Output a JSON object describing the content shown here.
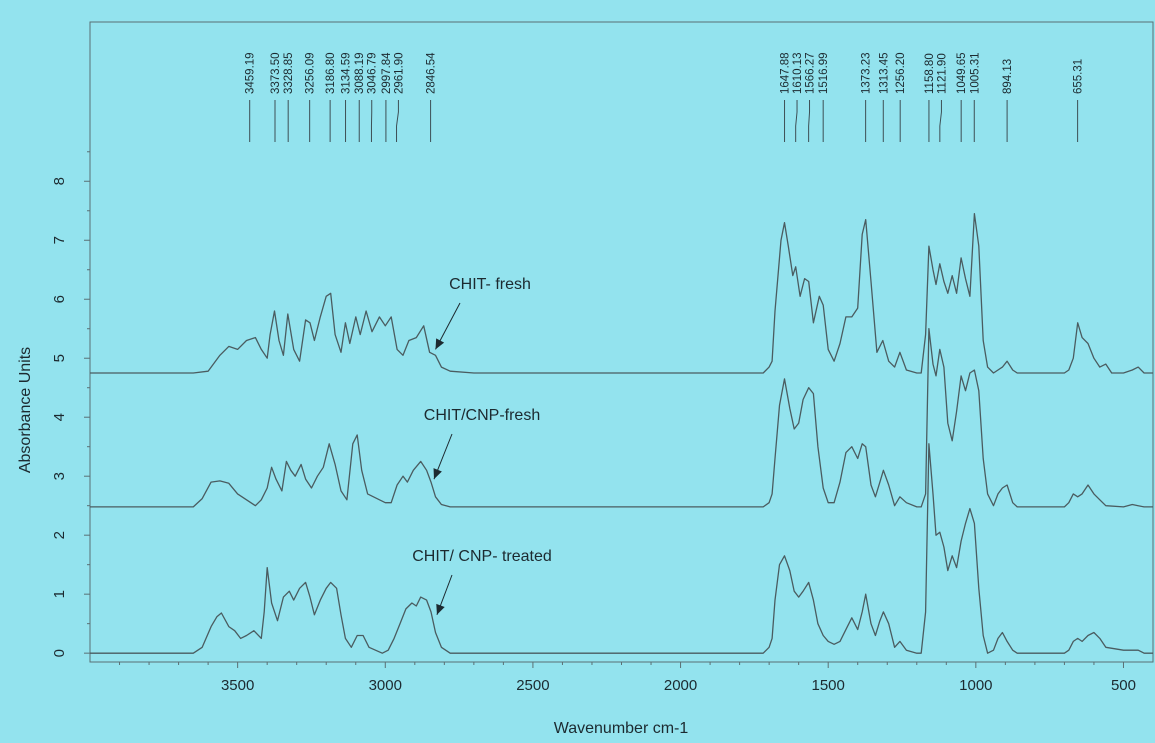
{
  "chart_data": {
    "type": "line",
    "xlabel": "Wavenumber cm-1",
    "ylabel": "Absorbance Units",
    "xlim": [
      4000,
      400
    ],
    "ylim": [
      -0.15,
      10.7
    ],
    "x_ticks": [
      3500,
      3000,
      2500,
      2000,
      1500,
      1000,
      500
    ],
    "y_ticks": [
      0,
      1,
      2,
      3,
      4,
      5,
      6,
      7,
      8
    ],
    "grid": false,
    "peak_labels": [
      "3459.19",
      "3373.50",
      "3328.85",
      "3256.09",
      "3186.80",
      "3134.59",
      "3088.19",
      "3046.79",
      "2997.84",
      "2961.90",
      "2846.54",
      "1647.88",
      "1610.13",
      "1566.27",
      "1516.99",
      "1373.23",
      "1313.45",
      "1256.20",
      "1158.80",
      "1121.90",
      "1049.65",
      "1005.31",
      "894.13",
      "655.31"
    ],
    "annotations": [
      {
        "text": "CHIT- fresh",
        "points_to": [
          2830,
          5.15
        ]
      },
      {
        "text": "CHIT/CNP-fresh",
        "points_to": [
          2835,
          2.95
        ]
      },
      {
        "text": "CHIT/ CNP- treated",
        "points_to": [
          2825,
          0.65
        ]
      }
    ],
    "series": [
      {
        "baseline": 4.75,
        "x": [
          4000,
          3650,
          3600,
          3560,
          3530,
          3500,
          3470,
          3440,
          3420,
          3400,
          3390,
          3375,
          3360,
          3345,
          3330,
          3310,
          3290,
          3270,
          3255,
          3240,
          3220,
          3200,
          3185,
          3170,
          3150,
          3135,
          3120,
          3100,
          3085,
          3065,
          3045,
          3020,
          3000,
          2980,
          2960,
          2940,
          2920,
          2895,
          2870,
          2850,
          2830,
          2810,
          2780,
          2700,
          1720,
          1700,
          1690,
          1680,
          1660,
          1648,
          1635,
          1620,
          1610,
          1595,
          1580,
          1566,
          1550,
          1530,
          1517,
          1500,
          1480,
          1460,
          1440,
          1420,
          1400,
          1385,
          1373,
          1355,
          1335,
          1315,
          1295,
          1275,
          1257,
          1235,
          1200,
          1185,
          1170,
          1159,
          1145,
          1135,
          1122,
          1108,
          1095,
          1080,
          1065,
          1050,
          1035,
          1020,
          1005,
          990,
          975,
          960,
          940,
          925,
          910,
          894,
          875,
          860,
          840,
          800,
          700,
          685,
          670,
          655,
          640,
          620,
          600,
          580,
          560,
          540,
          500,
          470,
          450,
          430,
          400
        ],
        "y": [
          4.75,
          4.75,
          4.78,
          5.05,
          5.2,
          5.15,
          5.3,
          5.35,
          5.15,
          5.0,
          5.4,
          5.8,
          5.3,
          5.05,
          5.75,
          5.15,
          4.95,
          5.65,
          5.6,
          5.3,
          5.7,
          6.05,
          6.1,
          5.4,
          5.1,
          5.6,
          5.25,
          5.7,
          5.4,
          5.8,
          5.45,
          5.7,
          5.55,
          5.7,
          5.15,
          5.05,
          5.3,
          5.35,
          5.55,
          5.1,
          5.05,
          4.85,
          4.78,
          4.75,
          4.75,
          4.85,
          4.95,
          5.8,
          7.0,
          7.3,
          6.9,
          6.4,
          6.55,
          6.05,
          6.35,
          6.3,
          5.6,
          6.05,
          5.9,
          5.15,
          4.95,
          5.25,
          5.7,
          5.7,
          5.85,
          7.1,
          7.35,
          6.3,
          5.1,
          5.3,
          4.95,
          4.85,
          5.1,
          4.8,
          4.75,
          4.75,
          5.4,
          6.9,
          6.5,
          6.25,
          6.6,
          6.3,
          6.1,
          6.4,
          6.1,
          6.7,
          6.35,
          6.05,
          7.45,
          6.9,
          5.3,
          4.85,
          4.75,
          4.8,
          4.85,
          4.95,
          4.8,
          4.75,
          4.75,
          4.75,
          4.75,
          4.8,
          5.0,
          5.6,
          5.35,
          5.25,
          5.0,
          4.85,
          4.9,
          4.75,
          4.75,
          4.8,
          4.85,
          4.75,
          4.75
        ]
      },
      {
        "baseline": 2.48,
        "x": [
          4000,
          3650,
          3620,
          3590,
          3560,
          3530,
          3500,
          3470,
          3440,
          3420,
          3400,
          3385,
          3370,
          3350,
          3335,
          3320,
          3305,
          3285,
          3270,
          3250,
          3230,
          3210,
          3190,
          3170,
          3150,
          3130,
          3110,
          3095,
          3080,
          3060,
          3000,
          2980,
          2960,
          2940,
          2925,
          2905,
          2880,
          2860,
          2845,
          2830,
          2810,
          2780,
          2700,
          1720,
          1700,
          1690,
          1680,
          1665,
          1648,
          1630,
          1615,
          1600,
          1585,
          1566,
          1550,
          1535,
          1517,
          1500,
          1480,
          1460,
          1440,
          1420,
          1400,
          1385,
          1373,
          1355,
          1340,
          1325,
          1313,
          1295,
          1275,
          1257,
          1235,
          1200,
          1185,
          1170,
          1159,
          1145,
          1135,
          1122,
          1108,
          1095,
          1080,
          1065,
          1050,
          1035,
          1020,
          1005,
          990,
          975,
          960,
          940,
          925,
          910,
          894,
          875,
          860,
          840,
          800,
          700,
          685,
          670,
          655,
          640,
          620,
          600,
          580,
          560,
          500,
          470,
          450,
          430,
          400
        ],
        "y": [
          2.48,
          2.48,
          2.62,
          2.9,
          2.92,
          2.88,
          2.7,
          2.6,
          2.5,
          2.6,
          2.8,
          3.15,
          2.95,
          2.75,
          3.25,
          3.1,
          3.0,
          3.2,
          2.95,
          2.8,
          3.0,
          3.15,
          3.55,
          3.2,
          2.75,
          2.6,
          3.55,
          3.7,
          3.1,
          2.7,
          2.55,
          2.55,
          2.85,
          3.0,
          2.9,
          3.1,
          3.25,
          3.1,
          2.9,
          2.65,
          2.52,
          2.48,
          2.48,
          2.48,
          2.55,
          2.7,
          3.3,
          4.2,
          4.65,
          4.15,
          3.8,
          3.9,
          4.3,
          4.5,
          4.4,
          3.5,
          2.8,
          2.55,
          2.55,
          2.9,
          3.4,
          3.5,
          3.3,
          3.55,
          3.5,
          2.85,
          2.65,
          2.9,
          3.1,
          2.85,
          2.5,
          2.65,
          2.55,
          2.48,
          2.48,
          2.7,
          5.5,
          4.9,
          4.7,
          5.15,
          4.85,
          3.9,
          3.6,
          4.1,
          4.7,
          4.45,
          4.75,
          4.8,
          4.45,
          3.3,
          2.7,
          2.5,
          2.7,
          2.8,
          2.85,
          2.55,
          2.48,
          2.48,
          2.48,
          2.48,
          2.55,
          2.7,
          2.65,
          2.7,
          2.85,
          2.7,
          2.6,
          2.5,
          2.48,
          2.52,
          2.5,
          2.48,
          2.48
        ]
      },
      {
        "baseline": 0.0,
        "x": [
          4000,
          3650,
          3620,
          3590,
          3570,
          3555,
          3530,
          3510,
          3490,
          3470,
          3445,
          3420,
          3410,
          3400,
          3385,
          3365,
          3345,
          3325,
          3310,
          3290,
          3270,
          3255,
          3240,
          3220,
          3200,
          3185,
          3165,
          3150,
          3135,
          3115,
          3095,
          3075,
          3055,
          3010,
          2990,
          2970,
          2950,
          2930,
          2910,
          2895,
          2880,
          2860,
          2845,
          2830,
          2810,
          2780,
          2700,
          1720,
          1700,
          1690,
          1680,
          1665,
          1648,
          1630,
          1615,
          1600,
          1585,
          1566,
          1550,
          1535,
          1517,
          1500,
          1480,
          1460,
          1440,
          1420,
          1400,
          1385,
          1373,
          1355,
          1340,
          1325,
          1313,
          1295,
          1275,
          1257,
          1235,
          1200,
          1185,
          1170,
          1159,
          1145,
          1135,
          1122,
          1108,
          1095,
          1080,
          1065,
          1050,
          1035,
          1020,
          1005,
          990,
          975,
          960,
          940,
          925,
          910,
          894,
          875,
          860,
          840,
          800,
          700,
          685,
          670,
          655,
          640,
          620,
          600,
          580,
          560,
          500,
          470,
          450,
          430,
          400
        ],
        "y": [
          0.0,
          0.0,
          0.1,
          0.45,
          0.62,
          0.68,
          0.45,
          0.38,
          0.25,
          0.3,
          0.38,
          0.25,
          0.7,
          1.45,
          0.85,
          0.55,
          0.95,
          1.05,
          0.9,
          1.1,
          1.2,
          0.95,
          0.65,
          0.9,
          1.1,
          1.2,
          1.1,
          0.65,
          0.25,
          0.1,
          0.3,
          0.3,
          0.1,
          0.0,
          0.05,
          0.25,
          0.5,
          0.75,
          0.85,
          0.8,
          0.95,
          0.9,
          0.7,
          0.35,
          0.1,
          0.0,
          0.0,
          0.0,
          0.1,
          0.25,
          0.9,
          1.5,
          1.65,
          1.4,
          1.05,
          0.95,
          1.05,
          1.2,
          0.9,
          0.5,
          0.3,
          0.2,
          0.15,
          0.2,
          0.4,
          0.6,
          0.4,
          0.7,
          1.0,
          0.5,
          0.3,
          0.55,
          0.7,
          0.5,
          0.1,
          0.2,
          0.05,
          0.0,
          0.0,
          0.7,
          3.55,
          2.7,
          2.0,
          2.05,
          1.8,
          1.4,
          1.65,
          1.45,
          1.9,
          2.2,
          2.45,
          2.2,
          1.1,
          0.3,
          0.0,
          0.05,
          0.25,
          0.35,
          0.2,
          0.05,
          0.0,
          0.0,
          0.0,
          0.0,
          0.05,
          0.2,
          0.25,
          0.2,
          0.3,
          0.35,
          0.25,
          0.1,
          0.05,
          0.05,
          0.05,
          0.0,
          0.0
        ]
      }
    ]
  }
}
